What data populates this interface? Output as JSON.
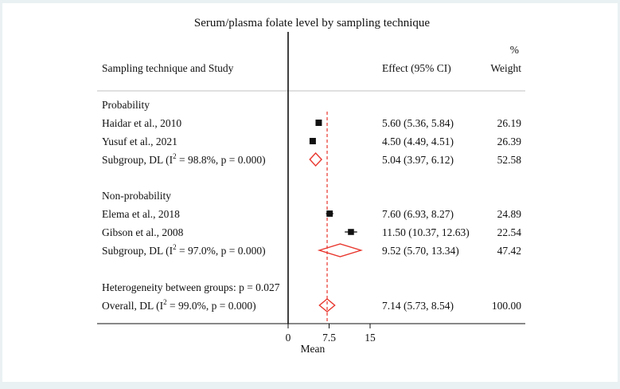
{
  "chart_data": {
    "type": "forest",
    "title": "Serum/plasma folate level by sampling technique",
    "xlabel": "Mean",
    "xticks": [
      0,
      7.5,
      15
    ],
    "xlim": [
      0,
      15
    ],
    "null_line": 0,
    "overall_effect": 7.14,
    "headers": {
      "study": "Sampling technique and Study",
      "effect": "Effect (95% CI)",
      "weight_top": "%",
      "weight": "Weight"
    },
    "rows": [
      {
        "kind": "group",
        "label": "Probability"
      },
      {
        "kind": "study",
        "label": "Haidar et al., 2010",
        "est": 5.6,
        "lo": 5.36,
        "hi": 5.84,
        "ci_text": "5.60 (5.36, 5.84)",
        "weight": "26.19"
      },
      {
        "kind": "study",
        "label": "Yusuf et al., 2021",
        "est": 4.5,
        "lo": 4.49,
        "hi": 4.51,
        "ci_text": "4.50 (4.49, 4.51)",
        "weight": "26.39"
      },
      {
        "kind": "subgroup",
        "label_pre": "Subgroup, DL (I",
        "sup": "2",
        "label_post": " = 98.8%, p = 0.000)",
        "est": 5.04,
        "lo": 3.97,
        "hi": 6.12,
        "ci_text": "5.04 (3.97, 6.12)",
        "weight": "52.58"
      },
      {
        "kind": "group",
        "label": "Non-probability"
      },
      {
        "kind": "study",
        "label": "Elema et al., 2018",
        "est": 7.6,
        "lo": 6.93,
        "hi": 8.27,
        "ci_text": "7.60 (6.93, 8.27)",
        "weight": "24.89"
      },
      {
        "kind": "study",
        "label": "Gibson et al., 2008",
        "est": 11.5,
        "lo": 10.37,
        "hi": 12.63,
        "ci_text": "11.50 (10.37, 12.63)",
        "weight": "22.54"
      },
      {
        "kind": "subgroup",
        "label_pre": "Subgroup, DL (I",
        "sup": "2",
        "label_post": " = 97.0%, p = 0.000)",
        "est": 9.52,
        "lo": 5.7,
        "hi": 13.34,
        "ci_text": "9.52 (5.70, 13.34)",
        "weight": "47.42"
      },
      {
        "kind": "note",
        "label": "Heterogeneity between groups: p = 0.027"
      },
      {
        "kind": "overall",
        "label_pre": "Overall, DL (I",
        "sup": "2",
        "label_post": " = 99.0%, p = 0.000)",
        "est": 7.14,
        "lo": 5.73,
        "hi": 8.54,
        "ci_text": "7.14 (5.73, 8.54)",
        "weight": "100.00"
      }
    ],
    "colors": {
      "diamond": "#e8352c",
      "ref_line": "#e8352c",
      "marker": "#111111",
      "axis": "#111111",
      "separator": "#c0c0c0",
      "background": "#eaf1f3",
      "panel": "#ffffff"
    }
  }
}
